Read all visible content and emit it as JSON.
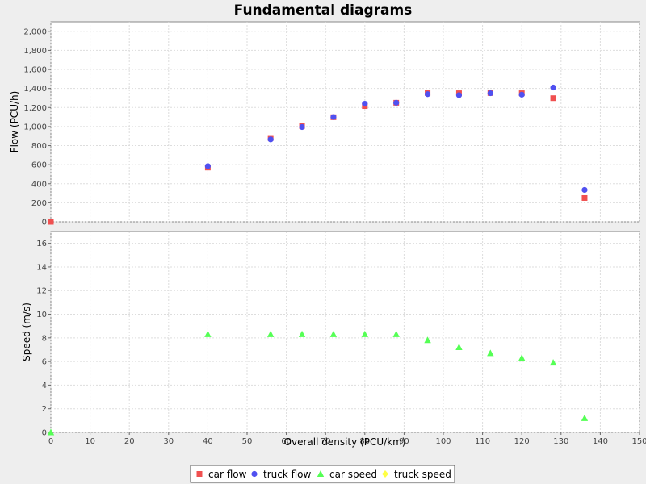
{
  "chart_data": {
    "type": "scatter",
    "title": "Fundamental diagrams",
    "xlabel": "Overall density (PCU/km)",
    "xlim": [
      0,
      150
    ],
    "x_ticks": [
      "0",
      "10",
      "20",
      "30",
      "40",
      "50",
      "60",
      "70",
      "80",
      "90",
      "100",
      "110",
      "120",
      "130",
      "140",
      "150"
    ],
    "grid": true,
    "legend_position": "bottom-center",
    "panels": [
      {
        "ylabel": "Flow (PCU/h)",
        "ylim": [
          0,
          2100
        ],
        "y_ticks": [
          0,
          200,
          400,
          600,
          800,
          1000,
          1200,
          1400,
          1600,
          1800,
          2000
        ],
        "y_tick_labels": [
          "0",
          "200",
          "400",
          "600",
          "800",
          "1,000",
          "1,200",
          "1,400",
          "1,600",
          "1,800",
          "2,000"
        ],
        "series": [
          {
            "name": "car flow",
            "marker": "square",
            "color": "#f05050",
            "points": [
              [
                0,
                0
              ],
              [
                40,
                570
              ],
              [
                56,
                880
              ],
              [
                64,
                1005
              ],
              [
                72,
                1098
              ],
              [
                80,
                1215
              ],
              [
                88,
                1250
              ],
              [
                96,
                1352
              ],
              [
                104,
                1350
              ],
              [
                112,
                1352
              ],
              [
                120,
                1350
              ],
              [
                128,
                1298
              ],
              [
                136,
                250
              ]
            ]
          },
          {
            "name": "truck flow",
            "marker": "circle",
            "color": "#5050f0",
            "points": [
              [
                40,
                585
              ],
              [
                56,
                865
              ],
              [
                64,
                995
              ],
              [
                72,
                1100
              ],
              [
                80,
                1240
              ],
              [
                88,
                1250
              ],
              [
                96,
                1340
              ],
              [
                104,
                1330
              ],
              [
                112,
                1350
              ],
              [
                120,
                1335
              ],
              [
                128,
                1410
              ],
              [
                136,
                335
              ]
            ]
          }
        ]
      },
      {
        "ylabel": "Speed (m/s)",
        "ylim": [
          0,
          17
        ],
        "y_ticks": [
          0,
          2,
          4,
          6,
          8,
          10,
          12,
          14,
          16
        ],
        "y_tick_labels": [
          "0",
          "2",
          "4",
          "6",
          "8",
          "10",
          "12",
          "14",
          "16"
        ],
        "series": [
          {
            "name": "car speed",
            "marker": "triangle",
            "color": "#55ff55",
            "points": [
              [
                0,
                0
              ],
              [
                40,
                8.3
              ],
              [
                56,
                8.3
              ],
              [
                64,
                8.3
              ],
              [
                72,
                8.3
              ],
              [
                80,
                8.3
              ],
              [
                88,
                8.3
              ],
              [
                96,
                7.8
              ],
              [
                104,
                7.2
              ],
              [
                112,
                6.7
              ],
              [
                120,
                6.3
              ],
              [
                128,
                5.9
              ],
              [
                136,
                1.2
              ]
            ]
          },
          {
            "name": "truck speed",
            "marker": "diamond",
            "color": "#ffff44",
            "points": []
          }
        ]
      }
    ],
    "legend": [
      {
        "label": "car flow",
        "marker": "square",
        "color": "#f05050"
      },
      {
        "label": "truck flow",
        "marker": "circle",
        "color": "#5050f0"
      },
      {
        "label": "car speed",
        "marker": "triangle",
        "color": "#55ff55"
      },
      {
        "label": "truck speed",
        "marker": "diamond",
        "color": "#ffff44"
      }
    ]
  }
}
